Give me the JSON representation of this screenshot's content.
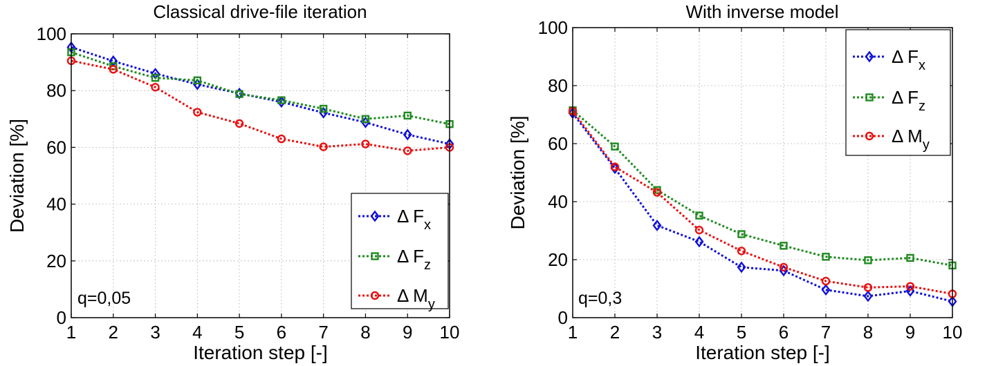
{
  "colors": {
    "Fx": "#1010d8",
    "Fz": "#208a20",
    "My": "#e81010"
  },
  "chart_data": [
    {
      "type": "line",
      "title": "Classical drive-file iteration",
      "xlabel": "Iteration step [-]",
      "ylabel": "Deviation [%]",
      "xlim": [
        1,
        10
      ],
      "ylim": [
        0,
        100
      ],
      "x": [
        1,
        2,
        3,
        4,
        5,
        6,
        7,
        8,
        9,
        10
      ],
      "xticks": [
        "1",
        "2",
        "3",
        "4",
        "5",
        "6",
        "7",
        "8",
        "9",
        "10"
      ],
      "yticks": [
        "0",
        "20",
        "40",
        "60",
        "80",
        "100"
      ],
      "grid": true,
      "legend_position": "bottom-right",
      "annotation": "q=0,05",
      "series": [
        {
          "symbol": "Δ F",
          "sub": "x",
          "marker": "diamond",
          "color_key": "Fx",
          "values": [
            95.3,
            90.4,
            86.0,
            82.2,
            79.0,
            76.0,
            72.2,
            68.8,
            64.5,
            61.2
          ]
        },
        {
          "symbol": "Δ F",
          "sub": "z",
          "marker": "square",
          "color_key": "Fz",
          "values": [
            93.5,
            88.6,
            84.5,
            83.6,
            78.8,
            76.6,
            73.6,
            70.0,
            71.2,
            68.2
          ]
        },
        {
          "symbol": "Δ M",
          "sub": "y",
          "marker": "circle",
          "color_key": "My",
          "values": [
            90.5,
            87.5,
            81.2,
            72.4,
            68.4,
            63.0,
            60.2,
            61.2,
            58.8,
            60.0
          ]
        }
      ]
    },
    {
      "type": "line",
      "title": "With inverse model",
      "xlabel": "Iteration step [-]",
      "ylabel": "Deviation [%]",
      "xlim": [
        1,
        10
      ],
      "ylim": [
        0,
        100
      ],
      "x": [
        1,
        2,
        3,
        4,
        5,
        6,
        7,
        8,
        9,
        10
      ],
      "xticks": [
        "1",
        "2",
        "3",
        "4",
        "5",
        "6",
        "7",
        "8",
        "9",
        "10"
      ],
      "yticks": [
        "0",
        "20",
        "40",
        "60",
        "80",
        "100"
      ],
      "grid": true,
      "legend_position": "top-right",
      "annotation": "q=0,3",
      "series": [
        {
          "symbol": "Δ F",
          "sub": "x",
          "marker": "diamond",
          "color_key": "Fx",
          "values": [
            70.5,
            51.5,
            31.8,
            26.2,
            17.4,
            16.2,
            9.6,
            7.4,
            9.2,
            5.6
          ]
        },
        {
          "symbol": "Δ F",
          "sub": "z",
          "marker": "square",
          "color_key": "Fz",
          "values": [
            71.5,
            59.0,
            44.0,
            35.2,
            28.8,
            24.8,
            21.0,
            19.8,
            20.6,
            18.0
          ]
        },
        {
          "symbol": "Δ M",
          "sub": "y",
          "marker": "circle",
          "color_key": "My",
          "values": [
            71.2,
            52.0,
            43.2,
            30.2,
            23.0,
            17.4,
            12.6,
            10.4,
            10.8,
            8.2
          ]
        }
      ]
    }
  ]
}
